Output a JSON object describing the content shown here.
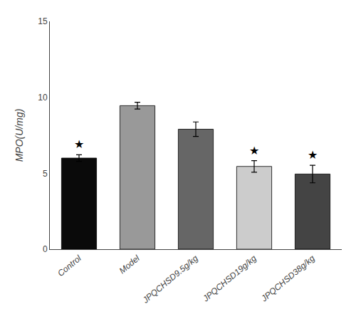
{
  "chart_data": {
    "type": "bar",
    "categories": [
      "Control",
      "Model",
      "JPQCHSD9.5g/kg",
      "JPQCHSD19g/kg",
      "JPQCHSD38g/kg"
    ],
    "values": [
      6.0,
      9.45,
      7.9,
      5.45,
      4.95
    ],
    "errors": [
      0.22,
      0.22,
      0.48,
      0.38,
      0.58
    ],
    "colors": [
      "#0a0a0a",
      "#999999",
      "#666666",
      "#cccccc",
      "#444444"
    ],
    "ylabel": "MPO(U/mg)",
    "ylim": [
      0,
      15
    ],
    "yticks": [
      0,
      5,
      10,
      15
    ],
    "grid": false,
    "annotations": [
      {
        "category": "Control",
        "text": "★"
      },
      {
        "category": "JPQCHSD19g/kg",
        "text": "★"
      },
      {
        "category": "JPQCHSD38g/kg",
        "text": "★"
      }
    ]
  }
}
